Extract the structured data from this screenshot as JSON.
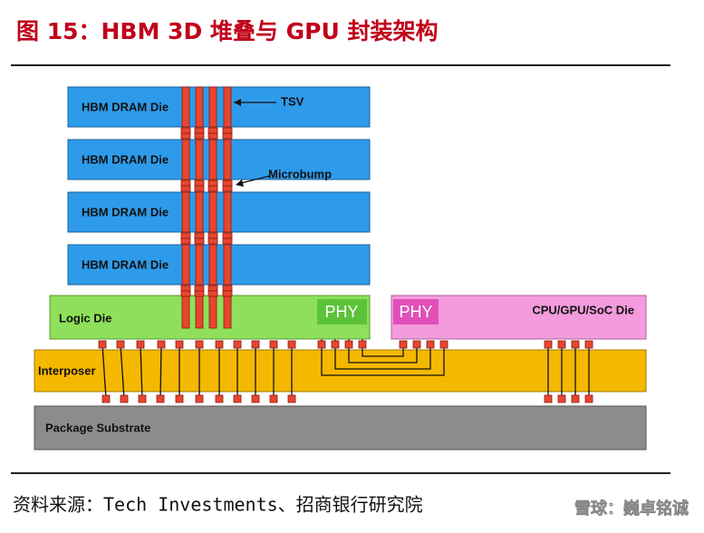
{
  "title": "图 15：HBM 3D 堆叠与 GPU 封装架构",
  "dies": [
    "HBM DRAM Die",
    "HBM DRAM Die",
    "HBM DRAM Die",
    "HBM DRAM Die"
  ],
  "callouts": {
    "tsv": "TSV",
    "microbump": "Microbump"
  },
  "logic_die": {
    "label": "Logic Die",
    "phy": "PHY"
  },
  "processor_die": {
    "label": "CPU/GPU/SoC Die",
    "phy": "PHY"
  },
  "interposer": "Interposer",
  "substrate": "Package Substrate",
  "source": "资料来源：Tech Investments、招商银行研究院",
  "watermark": "雪球：巍卓铭诚"
}
